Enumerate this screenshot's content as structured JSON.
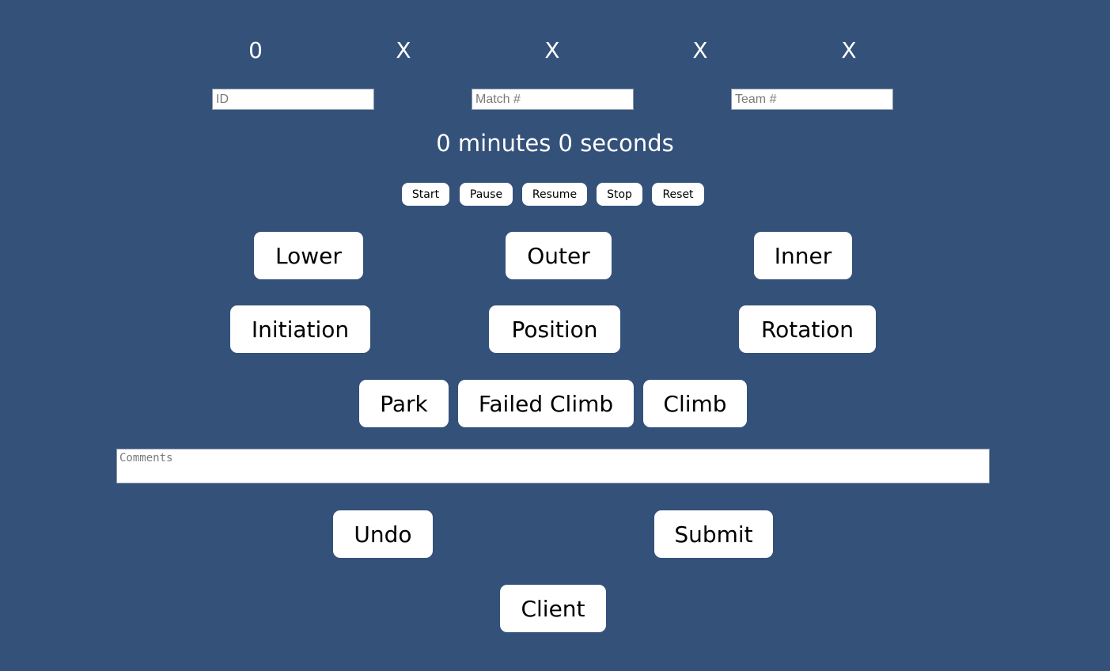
{
  "indicators": [
    "0",
    "X",
    "X",
    "X",
    "X"
  ],
  "inputs": {
    "id": {
      "placeholder": "ID",
      "value": ""
    },
    "match": {
      "placeholder": "Match #",
      "value": ""
    },
    "team": {
      "placeholder": "Team #",
      "value": ""
    }
  },
  "timer": {
    "text": "0 minutes 0 seconds"
  },
  "timer_controls": {
    "start": "Start",
    "pause": "Pause",
    "resume": "Resume",
    "stop": "Stop",
    "reset": "Reset"
  },
  "scoring": {
    "lower": "Lower",
    "outer": "Outer",
    "inner": "Inner",
    "initiation": "Initiation",
    "position": "Position",
    "rotation": "Rotation",
    "park": "Park",
    "failed_climb": "Failed Climb",
    "climb": "Climb"
  },
  "comments": {
    "placeholder": "Comments",
    "value": ""
  },
  "actions": {
    "undo": "Undo",
    "submit": "Submit",
    "client": "Client"
  },
  "colors": {
    "background": "#34517a",
    "button": "#ffffff",
    "text_on_background": "#ffffff"
  }
}
